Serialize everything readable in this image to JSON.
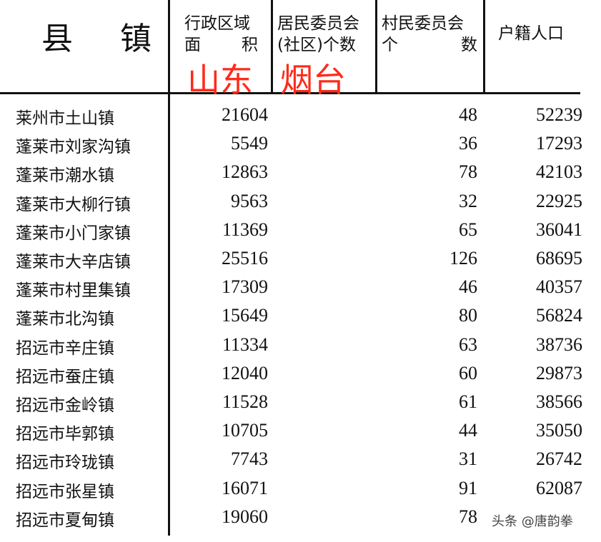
{
  "header": {
    "col0": "县 镇",
    "col1_line1": "行政区域",
    "col1_line2a": "面",
    "col1_line2b": "积",
    "col2_line1": "居民委员会",
    "col2_line2": "(社区)个数",
    "col3_line1": "村民委员会",
    "col3_line2a": "个",
    "col3_line2b": "数",
    "col4": "户籍人口",
    "overlay_left": "山东",
    "overlay_right": "烟台",
    "overlay_color": "#ff2a1a"
  },
  "rows": [
    {
      "name": "莱州市土山镇",
      "area": "21604",
      "residents": "",
      "villages": "48",
      "population": "52239"
    },
    {
      "name": "蓬莱市刘家沟镇",
      "area": "5549",
      "residents": "",
      "villages": "36",
      "population": "17293"
    },
    {
      "name": "蓬莱市潮水镇",
      "area": "12863",
      "residents": "",
      "villages": "78",
      "population": "42103"
    },
    {
      "name": "蓬莱市大柳行镇",
      "area": "9563",
      "residents": "",
      "villages": "32",
      "population": "22925"
    },
    {
      "name": "蓬莱市小门家镇",
      "area": "11369",
      "residents": "",
      "villages": "65",
      "population": "36041"
    },
    {
      "name": "蓬莱市大辛店镇",
      "area": "25516",
      "residents": "",
      "villages": "126",
      "population": "68695"
    },
    {
      "name": "蓬莱市村里集镇",
      "area": "17309",
      "residents": "",
      "villages": "46",
      "population": "40357"
    },
    {
      "name": "蓬莱市北沟镇",
      "area": "15649",
      "residents": "",
      "villages": "80",
      "population": "56824"
    },
    {
      "name": "招远市辛庄镇",
      "area": "11334",
      "residents": "",
      "villages": "63",
      "population": "38736"
    },
    {
      "name": "招远市蚕庄镇",
      "area": "12040",
      "residents": "",
      "villages": "60",
      "population": "29873"
    },
    {
      "name": "招远市金岭镇",
      "area": "11528",
      "residents": "",
      "villages": "61",
      "population": "38566"
    },
    {
      "name": "招远市毕郭镇",
      "area": "10705",
      "residents": "",
      "villages": "44",
      "population": "35050"
    },
    {
      "name": "招远市玲珑镇",
      "area": "7743",
      "residents": "",
      "villages": "31",
      "population": "26742"
    },
    {
      "name": "招远市张星镇",
      "area": "16071",
      "residents": "",
      "villages": "91",
      "population": "62087"
    },
    {
      "name": "招远市夏甸镇",
      "area": "19060",
      "residents": "",
      "villages": "78",
      "population": ""
    }
  ],
  "watermark": "头条 @唐韵拳"
}
